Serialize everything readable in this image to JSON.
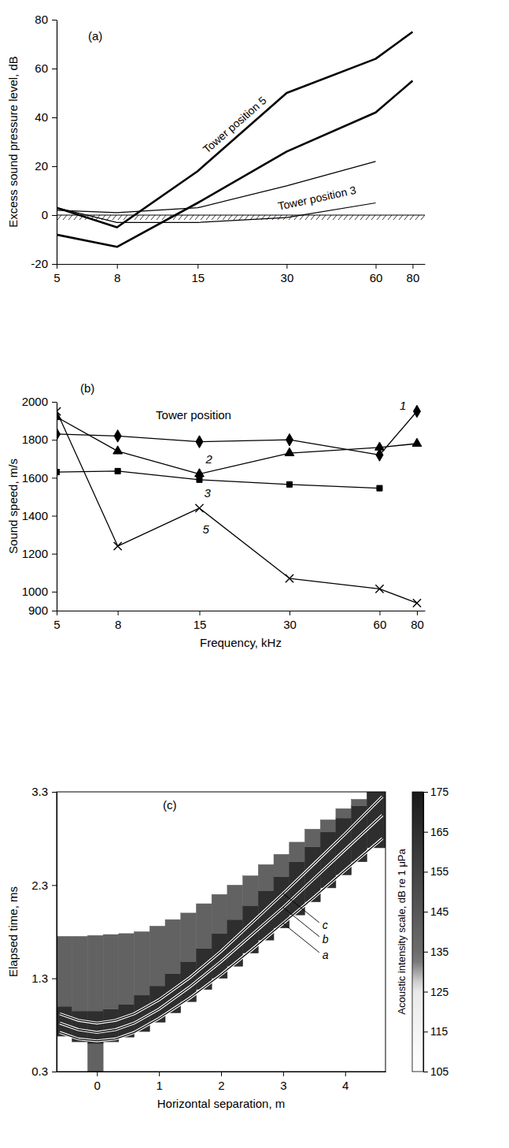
{
  "chart_data": [
    {
      "type": "line",
      "title": "(a)",
      "x": [
        5,
        8,
        15,
        30,
        60,
        80
      ],
      "log": "x",
      "xlim": [
        5,
        88
      ],
      "xticks": [
        5,
        8,
        15,
        30,
        60,
        80
      ],
      "ylim": [
        -20,
        80
      ],
      "yticks": [
        -20,
        0,
        20,
        40,
        60,
        80
      ],
      "y_label": "Excess sound pressure level, dB",
      "reference_y": 0,
      "series": [
        {
          "values": [
            3,
            -5,
            18,
            50,
            64,
            75
          ],
          "color": "#000000",
          "line_style": "thick"
        },
        {
          "values": [
            -8,
            -13,
            5,
            26,
            42,
            55
          ],
          "color": "#000000",
          "line_style": "thick"
        },
        {
          "values": [
            2,
            1,
            3,
            12,
            22,
            null
          ],
          "color": "#000000",
          "line_style": "thin"
        },
        {
          "values": [
            3,
            -3,
            -3,
            -1,
            5,
            null
          ],
          "color": "#000000",
          "line_style": "thin"
        }
      ],
      "annotations": [
        {
          "text": "Tower position 5",
          "x": 20,
          "y": 37
        },
        {
          "text": "Tower position 3",
          "x": 38,
          "y": 7
        }
      ]
    },
    {
      "type": "line",
      "title": "(b)",
      "annotation": "Tower position",
      "x": [
        5,
        8,
        15,
        30,
        60,
        80
      ],
      "log": "x",
      "xlim": [
        5,
        85
      ],
      "xticks": [
        5,
        8,
        15,
        30,
        60,
        80
      ],
      "ylim": [
        900,
        2000
      ],
      "yticks": [
        900,
        1000,
        1200,
        1400,
        1600,
        1800,
        2000
      ],
      "x_label": "Frequency, kHz",
      "y_label": "Sound speed, m/s",
      "series": [
        {
          "name": "1",
          "values": [
            1830,
            1820,
            1790,
            1800,
            1720,
            1950
          ],
          "color": "#000000",
          "marker": "diamond"
        },
        {
          "name": "2",
          "values": [
            1920,
            1740,
            1620,
            1730,
            1760,
            1780
          ],
          "color": "#000000",
          "marker": "triangle"
        },
        {
          "name": "3",
          "values": [
            1630,
            1635,
            1590,
            1565,
            1545,
            null
          ],
          "color": "#000000",
          "marker": "square"
        },
        {
          "name": "5",
          "values": [
            1950,
            1240,
            1440,
            1070,
            1015,
            940
          ],
          "color": "#000000",
          "marker": "x"
        }
      ]
    },
    {
      "type": "heatmap",
      "title": "(c)",
      "xlim": [
        -0.65,
        4.65
      ],
      "xticks": [
        0,
        1,
        2,
        3,
        4
      ],
      "ylim": [
        0.3,
        3.3
      ],
      "yticks": [
        0.3,
        1.3,
        2.3,
        3.3
      ],
      "x_label": "Horizontal separation, m",
      "y_label": "Elapsed time, ms",
      "cells": [
        [
          -0.65,
          -0.4,
          0.68,
          1.0,
          165
        ],
        [
          -0.65,
          -0.4,
          1.0,
          1.75,
          140
        ],
        [
          -0.4,
          -0.15,
          0.62,
          0.95,
          165
        ],
        [
          -0.4,
          -0.15,
          0.95,
          1.75,
          140
        ],
        [
          -0.15,
          0.1,
          0.3,
          0.6,
          140
        ],
        [
          -0.15,
          0.1,
          0.6,
          0.95,
          165
        ],
        [
          -0.15,
          0.1,
          0.95,
          1.76,
          140
        ],
        [
          0.1,
          0.35,
          0.62,
          0.97,
          165
        ],
        [
          0.1,
          0.35,
          0.97,
          1.77,
          140
        ],
        [
          0.35,
          0.6,
          0.67,
          1.02,
          165
        ],
        [
          0.35,
          0.6,
          1.02,
          1.78,
          140
        ],
        [
          0.6,
          0.85,
          0.73,
          1.12,
          165
        ],
        [
          0.6,
          0.85,
          1.12,
          1.8,
          140
        ],
        [
          0.85,
          1.1,
          0.83,
          1.22,
          165
        ],
        [
          0.85,
          1.1,
          1.22,
          1.86,
          140
        ],
        [
          1.1,
          1.35,
          0.93,
          1.35,
          165
        ],
        [
          1.1,
          1.35,
          1.35,
          1.93,
          140
        ],
        [
          1.35,
          1.6,
          1.05,
          1.48,
          165
        ],
        [
          1.35,
          1.6,
          1.48,
          2.0,
          140
        ],
        [
          1.6,
          1.85,
          1.18,
          1.62,
          165
        ],
        [
          1.6,
          1.85,
          1.62,
          2.1,
          140
        ],
        [
          1.85,
          2.1,
          1.3,
          1.78,
          165
        ],
        [
          1.85,
          2.1,
          1.78,
          2.2,
          140
        ],
        [
          2.1,
          2.35,
          1.43,
          1.93,
          165
        ],
        [
          2.1,
          2.35,
          1.93,
          2.3,
          140
        ],
        [
          2.35,
          2.6,
          1.57,
          2.08,
          165
        ],
        [
          2.35,
          2.6,
          2.08,
          2.4,
          140
        ],
        [
          2.6,
          2.85,
          1.71,
          2.24,
          165
        ],
        [
          2.6,
          2.85,
          2.24,
          2.52,
          140
        ],
        [
          2.85,
          3.1,
          1.84,
          2.39,
          165
        ],
        [
          2.85,
          3.1,
          2.39,
          2.63,
          140
        ],
        [
          3.1,
          3.35,
          1.98,
          2.55,
          165
        ],
        [
          3.1,
          3.35,
          2.55,
          2.76,
          140
        ],
        [
          3.35,
          3.6,
          2.12,
          2.71,
          165
        ],
        [
          3.35,
          3.6,
          2.71,
          2.9,
          140
        ],
        [
          3.6,
          3.85,
          2.27,
          2.87,
          165
        ],
        [
          3.6,
          3.85,
          2.87,
          3.0,
          140
        ],
        [
          3.85,
          4.1,
          2.41,
          3.02,
          165
        ],
        [
          3.85,
          4.1,
          3.02,
          3.12,
          140
        ],
        [
          4.1,
          4.35,
          2.55,
          3.15,
          165
        ],
        [
          4.1,
          4.35,
          3.15,
          3.22,
          140
        ],
        [
          4.35,
          4.65,
          2.7,
          3.3,
          165
        ]
      ],
      "colorbar": {
        "range": [
          105,
          175
        ],
        "ticks": [
          105,
          115,
          125,
          135,
          145,
          155,
          165,
          175
        ],
        "label": "Acoustic intensity scale, dB re 1 μPa"
      },
      "x": [
        -0.6,
        -0.3,
        0,
        0.3,
        0.6,
        1,
        1.5,
        2,
        2.5,
        3,
        3.5,
        4,
        4.6
      ],
      "series": [
        {
          "name": "a",
          "type": "line",
          "color": "#000000",
          "values": [
            0.72,
            0.65,
            0.63,
            0.65,
            0.72,
            0.87,
            1.09,
            1.34,
            1.61,
            1.89,
            2.17,
            2.46,
            2.8
          ]
        },
        {
          "name": "b",
          "type": "line",
          "color": "#000000",
          "values": [
            0.82,
            0.75,
            0.72,
            0.75,
            0.82,
            0.97,
            1.21,
            1.48,
            1.77,
            2.06,
            2.37,
            2.68,
            3.05
          ]
        },
        {
          "name": "c",
          "type": "line",
          "color": "#000000",
          "values": [
            0.92,
            0.85,
            0.82,
            0.85,
            0.92,
            1.07,
            1.31,
            1.59,
            1.9,
            2.21,
            2.53,
            2.85,
            3.25
          ]
        }
      ]
    }
  ]
}
